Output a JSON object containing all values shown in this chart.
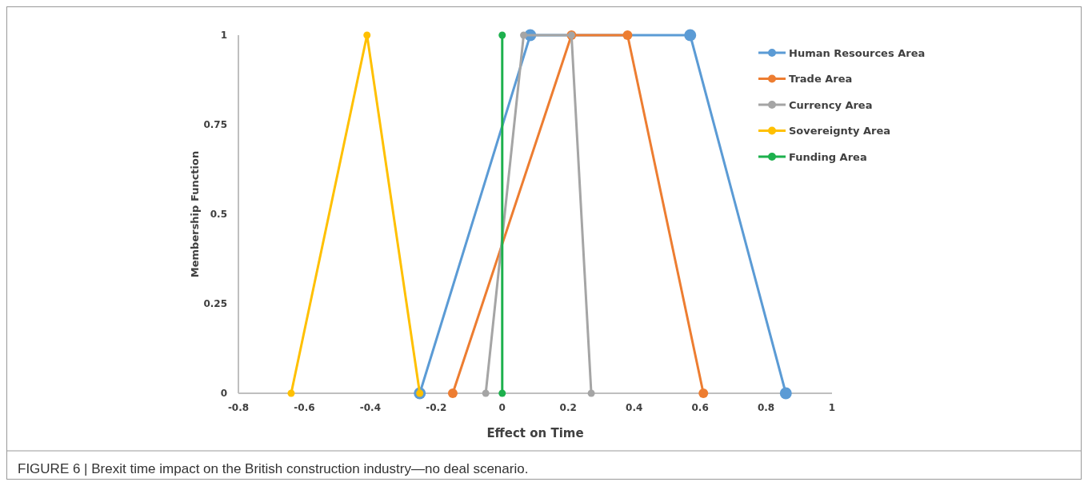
{
  "chart_data": {
    "type": "line",
    "xlabel": "Effect on Time",
    "ylabel": "Membership Function",
    "annotations": [
      "FIGURE 6 | Brexit time impact on the British construction industry—no deal scenario."
    ],
    "xlim": [
      -0.8,
      1
    ],
    "xticks": [
      -0.8,
      -0.6,
      -0.4,
      -0.2,
      0,
      0.2,
      0.4,
      0.6,
      0.8,
      1
    ],
    "ylim": [
      0,
      1
    ],
    "yticks": [
      0,
      0.25,
      0.5,
      0.75,
      1
    ],
    "grid": false,
    "legend": "top right",
    "marker": "circle",
    "line_style": "solid",
    "series": [
      {
        "name": "Human Resources Area",
        "color": "#5b9bd5",
        "x": [
          -0.25,
          0.085,
          0.57,
          0.86
        ],
        "values": [
          0,
          1,
          1,
          0
        ]
      },
      {
        "name": "Trade Area",
        "color": "#ed7d31",
        "x": [
          -0.15,
          0.21,
          0.38,
          0.61
        ],
        "values": [
          0,
          1,
          1,
          0
        ]
      },
      {
        "name": "Currency Area",
        "color": "#a5a5a5",
        "x": [
          -0.05,
          0.065,
          0.21,
          0.27
        ],
        "values": [
          0,
          1,
          1,
          0
        ]
      },
      {
        "name": "Sovereignty Area",
        "color": "#ffc000",
        "x": [
          -0.64,
          -0.41,
          -0.25
        ],
        "values": [
          0,
          1,
          0
        ]
      },
      {
        "name": "Funding Area",
        "color": "#1db04d",
        "x": [
          0,
          0
        ],
        "values": [
          0,
          1
        ]
      }
    ]
  }
}
